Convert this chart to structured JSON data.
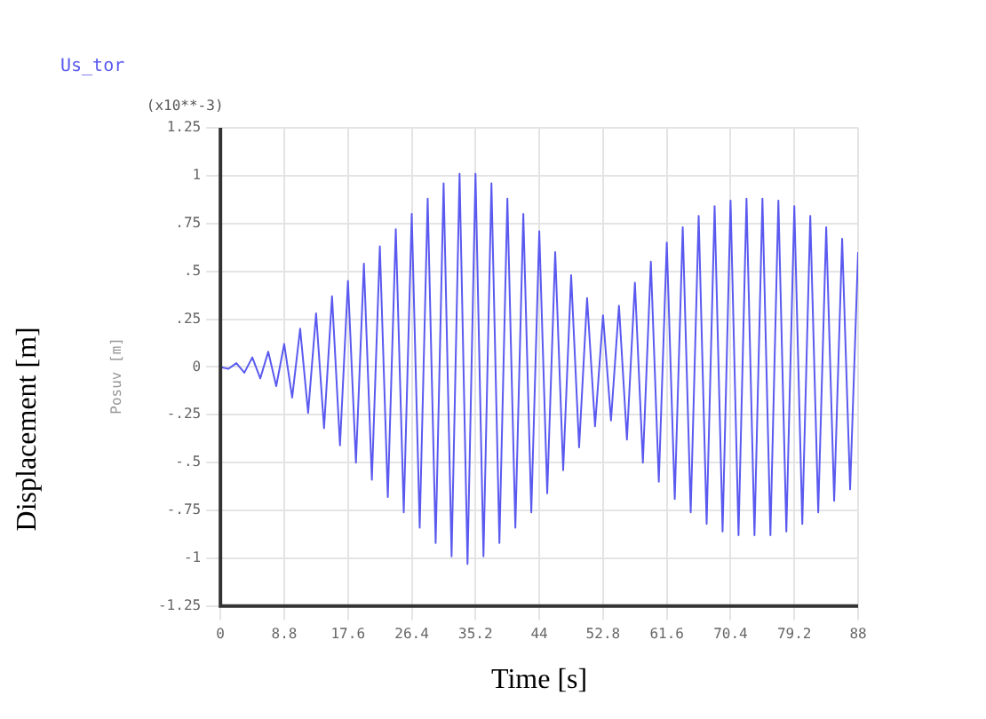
{
  "chart_data": {
    "type": "line",
    "xlabel": "Time [s]",
    "ylabel": "Displacement [m]",
    "annotations": [
      "(x10**-3)",
      "Posuv [m]"
    ],
    "x": [
      0,
      1.1,
      2.2,
      3.3,
      4.4,
      5.5,
      6.6,
      7.7,
      8.8,
      9.9,
      11,
      12.1,
      13.2,
      14.3,
      15.4,
      16.5,
      17.6,
      18.7,
      19.8,
      20.9,
      22,
      23.1,
      24.2,
      25.3,
      26.4,
      27.5,
      28.6,
      29.7,
      30.8,
      31.9,
      33,
      34.1,
      35.2,
      36.3,
      37.4,
      38.5,
      39.6,
      40.7,
      41.8,
      42.9,
      44,
      45.1,
      46.2,
      47.3,
      48.4,
      49.5,
      50.6,
      51.7,
      52.8,
      53.9,
      55,
      56.1,
      57.2,
      58.3,
      59.4,
      60.5,
      61.6,
      62.7,
      63.8,
      64.9,
      66,
      67.1,
      68.2,
      69.3,
      70.4,
      71.5,
      72.6,
      73.7,
      74.8,
      75.9,
      77,
      78.1,
      79.2,
      80.3,
      81.4,
      82.5,
      83.6,
      84.7,
      85.8,
      86.9,
      88
    ],
    "series": [
      {
        "name": "Us_tor",
        "color": "#5a5af0",
        "values": [
          0,
          -0.01,
          0.02,
          -0.03,
          0.05,
          -0.06,
          0.08,
          -0.1,
          0.12,
          -0.16,
          0.2,
          -0.24,
          0.28,
          -0.32,
          0.37,
          -0.41,
          0.45,
          -0.5,
          0.54,
          -0.59,
          0.63,
          -0.68,
          0.72,
          -0.76,
          0.8,
          -0.84,
          0.88,
          -0.92,
          0.96,
          -0.99,
          1.01,
          -1.03,
          1.01,
          -0.99,
          0.96,
          -0.92,
          0.88,
          -0.84,
          0.8,
          -0.76,
          0.71,
          -0.66,
          0.6,
          -0.54,
          0.48,
          -0.42,
          0.36,
          -0.31,
          0.27,
          -0.28,
          0.32,
          -0.38,
          0.44,
          -0.5,
          0.55,
          -0.6,
          0.65,
          -0.69,
          0.73,
          -0.76,
          0.79,
          -0.82,
          0.84,
          -0.86,
          0.87,
          -0.88,
          0.88,
          -0.88,
          0.88,
          -0.88,
          0.87,
          -0.86,
          0.84,
          -0.82,
          0.79,
          -0.76,
          0.73,
          -0.7,
          0.67,
          -0.64,
          0.6
        ]
      }
    ],
    "xlim": [
      0,
      88
    ],
    "xticks": [
      0,
      8.8,
      17.6,
      26.4,
      35.2,
      44,
      52.8,
      61.6,
      70.4,
      79.2,
      88
    ],
    "ylim": [
      -1.25,
      1.25
    ],
    "yticks": [
      {
        "value": -1.25,
        "label": "-1.25"
      },
      {
        "value": -1,
        "label": "-1"
      },
      {
        "value": -0.75,
        "label": "-.75"
      },
      {
        "value": -0.5,
        "label": "-.5"
      },
      {
        "value": -0.25,
        "label": "-.25"
      },
      {
        "value": 0,
        "label": "0"
      },
      {
        "value": 0.25,
        "label": ".25"
      },
      {
        "value": 0.5,
        "label": ".5"
      },
      {
        "value": 0.75,
        "label": ".75"
      },
      {
        "value": 1,
        "label": "1"
      },
      {
        "value": 1.25,
        "label": "1.25"
      }
    ],
    "grid": true,
    "marker": "none",
    "line_style": "solid"
  }
}
